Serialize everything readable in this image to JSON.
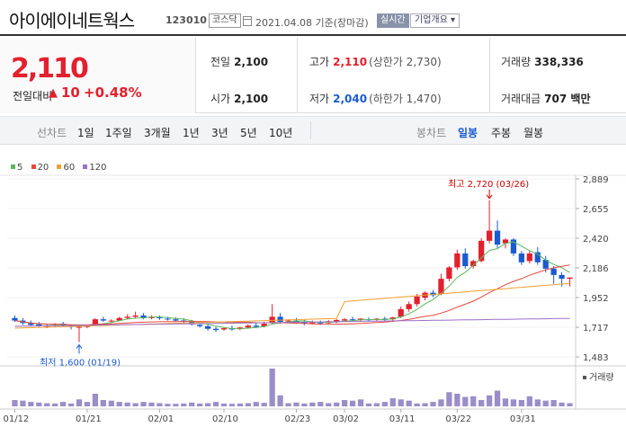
{
  "header": {
    "name": "아이에이네트웍스",
    "code": "123010",
    "market": "코스닥",
    "date": "2021.04.08 기준(장마감)",
    "realtime": "실시간",
    "company_info": "기업개요 ▾"
  },
  "quote": {
    "price": "2,110",
    "change_label": "전일대비",
    "change_arrow": "▲",
    "change": "10",
    "change_pct": "+0.48%",
    "prev_close_label": "전일",
    "prev_close": "2,100",
    "high_label": "고가",
    "high": "2,110",
    "upper_limit": "(상한가 2,730)",
    "volume_label": "거래량",
    "volume": "338,336",
    "open_label": "시가",
    "open": "2,100",
    "low_label": "저가",
    "low": "2,040",
    "lower_limit": "(하한가 1,470)",
    "amount_label": "거래대금",
    "amount": "707 백만"
  },
  "periods": {
    "line_label": "선차트",
    "line_items": [
      "1일",
      "1주일",
      "3개월",
      "1년",
      "3년",
      "5년",
      "10년"
    ],
    "candle_label": "봉차트",
    "candle_items": [
      "일봉",
      "주봉",
      "월봉"
    ],
    "candle_active": "일봉"
  },
  "legend": [
    {
      "label": "5",
      "color": "#5cb85c"
    },
    {
      "label": "20",
      "color": "#e8473e"
    },
    {
      "label": "60",
      "color": "#f0a030"
    },
    {
      "label": "120",
      "color": "#9c6fc8"
    }
  ],
  "chart_data": {
    "type": "candlestick",
    "y_ticks": [
      "2,889",
      "2,655",
      "2,420",
      "2,186",
      "1,952",
      "1,717",
      "1,483"
    ],
    "ylim": [
      1483,
      2889
    ],
    "x_labels": [
      "01/12",
      "01/21",
      "02/01",
      "02/10",
      "02/23",
      "03/02",
      "03/11",
      "03/22",
      "03/31"
    ],
    "high_note": "최고 2,720 (03/26)",
    "low_note": "최저 1,600 (01/19)",
    "volume_label": "거래량",
    "up_color": "#e3202e",
    "down_color": "#1a5bd0",
    "candles": [
      [
        1790,
        1810,
        1770,
        1760,
        "d"
      ],
      [
        1770,
        1790,
        1750,
        1735,
        "d"
      ],
      [
        1750,
        1770,
        1735,
        1730,
        "d"
      ],
      [
        1740,
        1760,
        1725,
        1720,
        "d"
      ],
      [
        1725,
        1745,
        1730,
        1710,
        "u"
      ],
      [
        1735,
        1750,
        1740,
        1720,
        "u"
      ],
      [
        1745,
        1760,
        1730,
        1720,
        "d"
      ],
      [
        1730,
        1740,
        1720,
        1700,
        "d"
      ],
      [
        1715,
        1730,
        1720,
        1600,
        "u"
      ],
      [
        1720,
        1730,
        1735,
        1710,
        "u"
      ],
      [
        1740,
        1790,
        1780,
        1730,
        "u"
      ],
      [
        1780,
        1800,
        1770,
        1760,
        "d"
      ],
      [
        1765,
        1780,
        1770,
        1750,
        "u"
      ],
      [
        1770,
        1800,
        1790,
        1765,
        "u"
      ],
      [
        1790,
        1820,
        1800,
        1780,
        "u"
      ],
      [
        1800,
        1840,
        1810,
        1790,
        "u"
      ],
      [
        1810,
        1830,
        1790,
        1780,
        "d"
      ],
      [
        1790,
        1810,
        1800,
        1780,
        "u"
      ],
      [
        1795,
        1810,
        1790,
        1775,
        "d"
      ],
      [
        1785,
        1800,
        1780,
        1770,
        "d"
      ],
      [
        1780,
        1795,
        1770,
        1760,
        "d"
      ],
      [
        1770,
        1790,
        1765,
        1750,
        "d"
      ],
      [
        1760,
        1775,
        1740,
        1730,
        "d"
      ],
      [
        1735,
        1750,
        1725,
        1715,
        "d"
      ],
      [
        1725,
        1740,
        1705,
        1690,
        "d"
      ],
      [
        1705,
        1720,
        1695,
        1680,
        "d"
      ],
      [
        1700,
        1715,
        1710,
        1690,
        "u"
      ],
      [
        1710,
        1730,
        1700,
        1690,
        "d"
      ],
      [
        1705,
        1720,
        1715,
        1695,
        "u"
      ],
      [
        1715,
        1740,
        1730,
        1705,
        "u"
      ],
      [
        1730,
        1750,
        1720,
        1710,
        "d"
      ],
      [
        1725,
        1760,
        1745,
        1715,
        "u"
      ],
      [
        1750,
        1900,
        1800,
        1740,
        "u"
      ],
      [
        1800,
        1830,
        1760,
        1745,
        "d"
      ],
      [
        1765,
        1780,
        1770,
        1750,
        "u"
      ],
      [
        1770,
        1790,
        1760,
        1745,
        "d"
      ],
      [
        1760,
        1775,
        1750,
        1735,
        "d"
      ],
      [
        1750,
        1770,
        1755,
        1740,
        "u"
      ],
      [
        1755,
        1770,
        1750,
        1735,
        "d"
      ],
      [
        1750,
        1775,
        1765,
        1740,
        "u"
      ],
      [
        1760,
        1780,
        1775,
        1750,
        "u"
      ],
      [
        1770,
        1790,
        1780,
        1760,
        "u"
      ],
      [
        1780,
        1800,
        1775,
        1765,
        "d"
      ],
      [
        1775,
        1790,
        1785,
        1765,
        "u"
      ],
      [
        1780,
        1795,
        1775,
        1765,
        "d"
      ],
      [
        1775,
        1790,
        1785,
        1765,
        "u"
      ],
      [
        1785,
        1800,
        1775,
        1765,
        "d"
      ],
      [
        1780,
        1800,
        1795,
        1770,
        "u"
      ],
      [
        1800,
        1880,
        1860,
        1790,
        "u"
      ],
      [
        1860,
        1920,
        1900,
        1840,
        "u"
      ],
      [
        1900,
        1980,
        1960,
        1880,
        "u"
      ],
      [
        1950,
        2000,
        1990,
        1930,
        "u"
      ],
      [
        1990,
        2010,
        1970,
        1955,
        "d"
      ],
      [
        1980,
        2140,
        2100,
        1970,
        "u"
      ],
      [
        2100,
        2200,
        2190,
        2080,
        "u"
      ],
      [
        2190,
        2330,
        2300,
        2170,
        "u"
      ],
      [
        2300,
        2340,
        2200,
        2180,
        "d"
      ],
      [
        2200,
        2250,
        2240,
        2180,
        "u"
      ],
      [
        2240,
        2420,
        2400,
        2230,
        "u"
      ],
      [
        2400,
        2720,
        2480,
        2380,
        "u"
      ],
      [
        2480,
        2560,
        2370,
        2340,
        "d"
      ],
      [
        2380,
        2420,
        2410,
        2340,
        "u"
      ],
      [
        2410,
        2420,
        2300,
        2280,
        "d"
      ],
      [
        2300,
        2320,
        2230,
        2210,
        "d"
      ],
      [
        2240,
        2320,
        2300,
        2220,
        "u"
      ],
      [
        2310,
        2350,
        2230,
        2210,
        "d"
      ],
      [
        2250,
        2280,
        2180,
        2150,
        "d"
      ],
      [
        2180,
        2200,
        2130,
        2060,
        "d"
      ],
      [
        2130,
        2150,
        2100,
        2040,
        "d"
      ],
      [
        2100,
        2110,
        2110,
        2040,
        "u"
      ]
    ],
    "volumes": [
      20,
      18,
      14,
      12,
      10,
      9,
      14,
      9,
      22,
      14,
      40,
      20,
      18,
      14,
      12,
      10,
      14,
      12,
      10,
      8,
      8,
      9,
      12,
      9,
      10,
      14,
      9,
      8,
      9,
      10,
      14,
      11,
      120,
      35,
      10,
      12,
      9,
      12,
      14,
      10,
      12,
      20,
      18,
      22,
      9,
      10,
      14,
      26,
      22,
      18,
      9,
      10,
      14,
      22,
      45,
      40,
      30,
      32,
      20,
      35,
      50,
      25,
      22,
      20,
      32,
      22,
      18,
      20,
      12,
      10
    ]
  }
}
